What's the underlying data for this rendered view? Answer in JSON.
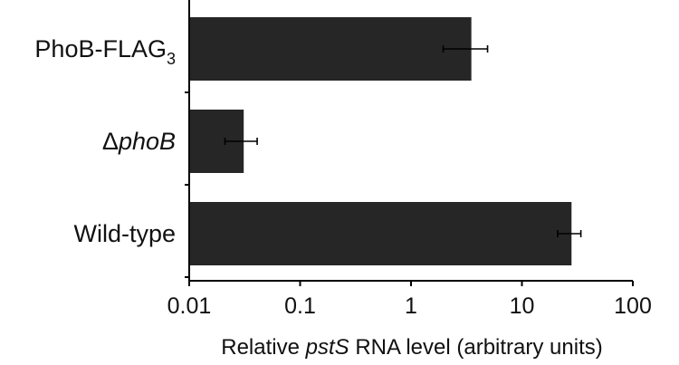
{
  "chart_data": {
    "type": "bar",
    "orientation": "horizontal",
    "scale": "log",
    "categories": [
      {
        "prefix": "PhoB-FLAG",
        "italic": "",
        "subscript": "3"
      },
      {
        "prefix": "Δ",
        "italic": "phoB",
        "subscript": ""
      },
      {
        "prefix": "Wild-type",
        "italic": "",
        "subscript": ""
      }
    ],
    "values": [
      3.5,
      0.031,
      28
    ],
    "error_low": [
      1.95,
      0.021,
      21
    ],
    "error_high": [
      4.9,
      0.041,
      34
    ],
    "xlim": [
      0.01,
      100
    ],
    "xticks": [
      {
        "value": 0.01,
        "label": "0.01"
      },
      {
        "value": 0.1,
        "label": "0.1"
      },
      {
        "value": 1,
        "label": "1"
      },
      {
        "value": 10,
        "label": "10"
      },
      {
        "value": 100,
        "label": "100"
      }
    ],
    "xlabel": {
      "before": "Relative ",
      "italic": "pstS",
      "after": " RNA level (arbitrary units)"
    },
    "bar_color": "#262626",
    "error_color": "#000000",
    "axis_color": "#000000",
    "grid": false,
    "legend": "none"
  }
}
